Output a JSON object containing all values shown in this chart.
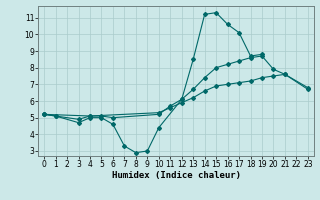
{
  "title": "",
  "xlabel": "Humidex (Indice chaleur)",
  "bg_color": "#cce8e8",
  "line_color": "#006868",
  "grid_color": "#aacccc",
  "xlim": [
    -0.5,
    23.5
  ],
  "ylim": [
    2.7,
    11.7
  ],
  "xticks": [
    0,
    1,
    2,
    3,
    4,
    5,
    6,
    7,
    8,
    9,
    10,
    11,
    12,
    13,
    14,
    15,
    16,
    17,
    18,
    19,
    20,
    21,
    22,
    23
  ],
  "yticks": [
    3,
    4,
    5,
    6,
    7,
    8,
    9,
    10,
    11
  ],
  "line1": {
    "x": [
      0,
      1,
      3,
      4,
      5,
      6,
      7,
      8,
      9,
      10,
      12,
      13,
      14,
      15,
      16,
      17,
      18,
      19
    ],
    "y": [
      5.2,
      5.1,
      4.7,
      5.0,
      5.0,
      4.6,
      3.3,
      2.9,
      3.0,
      4.4,
      6.1,
      8.5,
      11.2,
      11.3,
      10.6,
      10.1,
      8.7,
      8.8
    ]
  },
  "line2": {
    "x": [
      0,
      1,
      3,
      4,
      5,
      6,
      10,
      11,
      12,
      13,
      14,
      15,
      16,
      17,
      18,
      19,
      20,
      21,
      23
    ],
    "y": [
      5.2,
      5.1,
      4.9,
      5.1,
      5.1,
      5.0,
      5.2,
      5.7,
      6.1,
      6.7,
      7.4,
      8.0,
      8.2,
      8.4,
      8.6,
      8.7,
      7.9,
      7.6,
      6.7
    ]
  },
  "line3": {
    "x": [
      0,
      4,
      10,
      11,
      12,
      13,
      14,
      15,
      16,
      17,
      18,
      19,
      20,
      21,
      23
    ],
    "y": [
      5.2,
      5.1,
      5.3,
      5.6,
      5.9,
      6.2,
      6.6,
      6.9,
      7.0,
      7.1,
      7.2,
      7.4,
      7.5,
      7.6,
      6.8
    ]
  }
}
